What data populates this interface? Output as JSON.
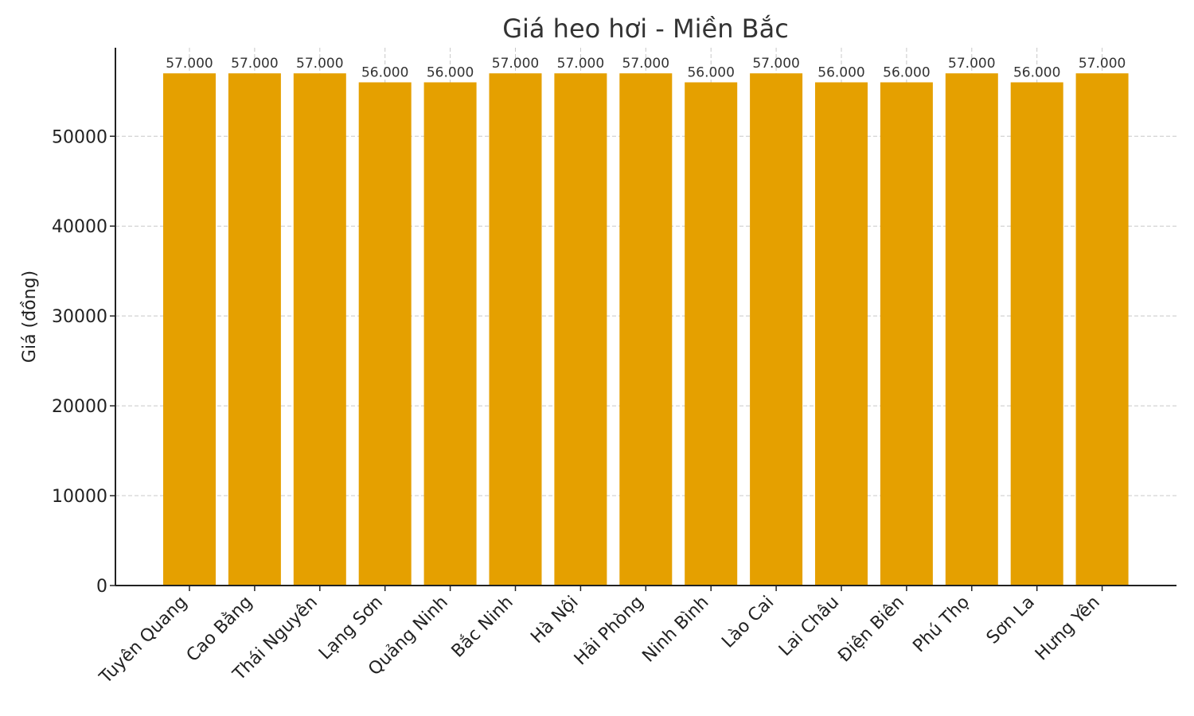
{
  "chart_data": {
    "type": "bar",
    "title": "Giá heo hơi - Miền Bắc",
    "xlabel": "",
    "ylabel": "Giá (đồng)",
    "categories": [
      "Tuyên Quang",
      "Cao Bằng",
      "Thái Nguyên",
      "Lạng Sơn",
      "Quảng Ninh",
      "Bắc Ninh",
      "Hà Nội",
      "Hải Phòng",
      "Ninh Bình",
      "Lào Cai",
      "Lai Châu",
      "Điện Biên",
      "Phú Thọ",
      "Sơn La",
      "Hưng Yên"
    ],
    "values": [
      57000,
      57000,
      57000,
      56000,
      56000,
      57000,
      57000,
      57000,
      56000,
      57000,
      56000,
      56000,
      57000,
      56000,
      57000
    ],
    "data_labels": [
      "57.000",
      "57.000",
      "57.000",
      "56.000",
      "56.000",
      "57.000",
      "57.000",
      "57.000",
      "56.000",
      "57.000",
      "56.000",
      "56.000",
      "57.000",
      "56.000",
      "57.000"
    ],
    "yticks": [
      0,
      10000,
      20000,
      30000,
      40000,
      50000
    ],
    "ylim": [
      0,
      59850
    ],
    "grid": true,
    "bar_color": "#E5A000"
  }
}
